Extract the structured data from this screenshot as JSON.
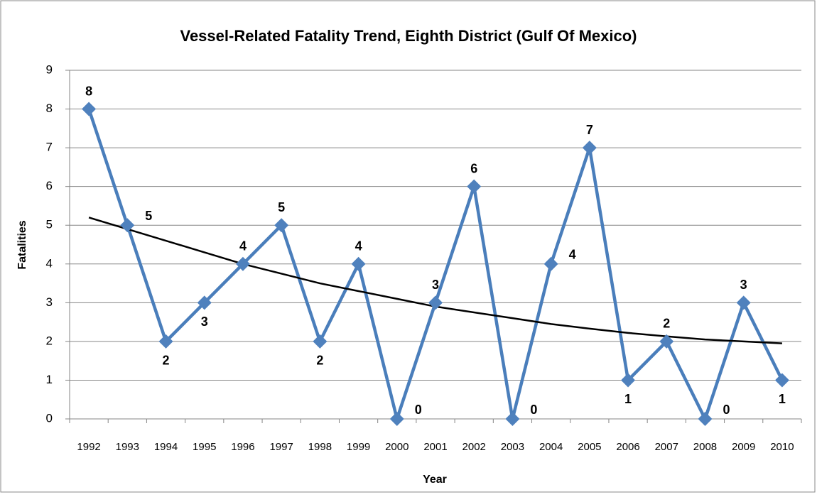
{
  "chart_data": {
    "type": "line",
    "title": "Vessel-Related Fatality Trend, Eighth District (Gulf Of Mexico)",
    "x_label": "Year",
    "y_label": "Fatalities",
    "categories": [
      "1992",
      "1993",
      "1994",
      "1995",
      "1996",
      "1997",
      "1998",
      "1999",
      "2000",
      "2001",
      "2002",
      "2003",
      "2004",
      "2005",
      "2006",
      "2007",
      "2008",
      "2009",
      "2010"
    ],
    "series": [
      {
        "color": "#4a7ebb",
        "values": [
          8,
          5,
          2,
          3,
          4,
          5,
          2,
          4,
          0,
          3,
          6,
          0,
          4,
          7,
          1,
          2,
          0,
          3,
          1
        ]
      }
    ],
    "trendline": {
      "color": "#000000",
      "values": [
        5.2,
        4.9,
        4.6,
        4.3,
        4.0,
        3.75,
        3.5,
        3.3,
        3.1,
        2.9,
        2.75,
        2.6,
        2.45,
        2.33,
        2.22,
        2.13,
        2.05,
        2.0,
        1.95
      ]
    },
    "ylim": [
      0,
      9
    ],
    "yticks": [
      0,
      1,
      2,
      3,
      4,
      5,
      6,
      7,
      8,
      9
    ],
    "grid": true
  }
}
